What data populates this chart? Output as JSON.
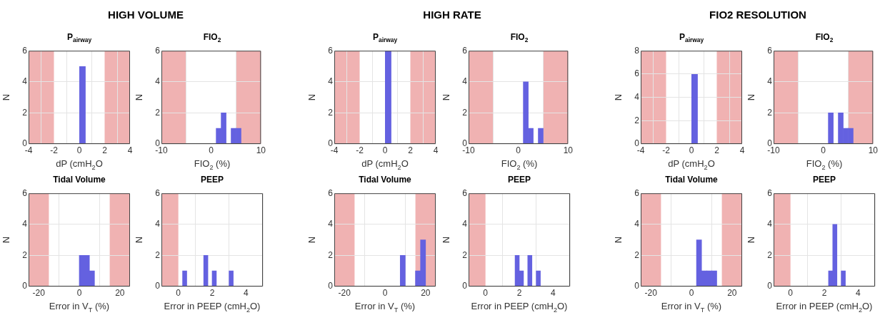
{
  "chart_data": [
    {
      "type": "histogram",
      "title": "P$_{airway}$",
      "xlabel": "dP (cmH$_{2}$O",
      "ylabel": "N",
      "annotations": [
        "HIGH VOLUME"
      ],
      "bins": [
        0,
        0.5
      ],
      "values": [
        5
      ],
      "color": "#6461e0",
      "xlim": [
        -4,
        4
      ],
      "xticks": [
        -4,
        -2,
        0,
        2,
        4
      ],
      "ylim": [
        0,
        6
      ],
      "yticks": [
        0,
        2,
        4,
        6
      ],
      "grid": true,
      "bands": [
        {
          "axis": "x",
          "from": -4,
          "to": -2,
          "color": "#f0b2b2"
        },
        {
          "axis": "x",
          "from": 2,
          "to": 4,
          "color": "#f0b2b2"
        }
      ]
    },
    {
      "type": "histogram",
      "title": "FIO$_{2}$",
      "xlabel": "FIO$_{2}$ (%)",
      "ylabel": "N",
      "bins": [
        1,
        2,
        3,
        4,
        5,
        6
      ],
      "values": [
        1,
        2,
        0,
        1,
        1
      ],
      "color": "#6461e0",
      "xlim": [
        -10,
        10
      ],
      "xticks": [
        -10,
        0,
        10
      ],
      "ylim": [
        0,
        6
      ],
      "yticks": [
        0,
        2,
        4,
        6
      ],
      "grid": true,
      "bands": [
        {
          "axis": "x",
          "from": -10,
          "to": -5,
          "color": "#f0b2b2"
        },
        {
          "axis": "x",
          "from": 5,
          "to": 10,
          "color": "#f0b2b2"
        }
      ]
    },
    {
      "type": "histogram",
      "title": "P$_{airway}$",
      "xlabel": "dP (cmH$_{2}$O",
      "ylabel": "N",
      "annotations": [
        "HIGH RATE"
      ],
      "bins": [
        0,
        0.5
      ],
      "values": [
        6
      ],
      "color": "#6461e0",
      "xlim": [
        -4,
        4
      ],
      "xticks": [
        -4,
        -2,
        0,
        2,
        4
      ],
      "ylim": [
        0,
        6
      ],
      "yticks": [
        0,
        2,
        4,
        6
      ],
      "grid": true,
      "bands": [
        {
          "axis": "x",
          "from": -4,
          "to": -2,
          "color": "#f0b2b2"
        },
        {
          "axis": "x",
          "from": 2,
          "to": 4,
          "color": "#f0b2b2"
        }
      ]
    },
    {
      "type": "histogram",
      "title": "FIO$_{2}$",
      "xlabel": "FIO$_{2}$ (%)",
      "ylabel": "N",
      "bins": [
        1,
        2,
        3,
        4,
        5
      ],
      "values": [
        4,
        1,
        0,
        1
      ],
      "color": "#6461e0",
      "xlim": [
        -10,
        10
      ],
      "xticks": [
        -10,
        0,
        10
      ],
      "ylim": [
        0,
        6
      ],
      "yticks": [
        0,
        2,
        4,
        6
      ],
      "grid": true,
      "bands": [
        {
          "axis": "x",
          "from": -10,
          "to": -5,
          "color": "#f0b2b2"
        },
        {
          "axis": "x",
          "from": 5,
          "to": 10,
          "color": "#f0b2b2"
        }
      ]
    },
    {
      "type": "histogram",
      "title": "P$_{airway}$",
      "xlabel": "dP (cmH$_{2}$O",
      "ylabel": "N",
      "annotations": [
        "FIO2 RESOLUTION"
      ],
      "bins": [
        0,
        0.5
      ],
      "values": [
        6
      ],
      "color": "#6461e0",
      "xlim": [
        -4,
        4
      ],
      "xticks": [
        -4,
        -2,
        0,
        2,
        4
      ],
      "ylim": [
        0,
        8
      ],
      "yticks": [
        0,
        2,
        4,
        6,
        8
      ],
      "grid": true,
      "bands": [
        {
          "axis": "x",
          "from": -4,
          "to": -2,
          "color": "#f0b2b2"
        },
        {
          "axis": "x",
          "from": 2,
          "to": 4,
          "color": "#f0b2b2"
        }
      ]
    },
    {
      "type": "histogram",
      "title": "FIO$_{2}$",
      "xlabel": "FIO$_{2}$ (%)",
      "ylabel": "N",
      "bins": [
        1,
        2,
        3,
        4,
        5,
        6
      ],
      "values": [
        2,
        0,
        2,
        1,
        1
      ],
      "color": "#6461e0",
      "xlim": [
        -10,
        10
      ],
      "xticks": [
        -10,
        0,
        10
      ],
      "ylim": [
        0,
        6
      ],
      "yticks": [
        0,
        2,
        4,
        6
      ],
      "grid": true,
      "bands": [
        {
          "axis": "x",
          "from": -10,
          "to": -5,
          "color": "#f0b2b2"
        },
        {
          "axis": "x",
          "from": 5,
          "to": 10,
          "color": "#f0b2b2"
        }
      ]
    },
    {
      "type": "histogram",
      "title": "Tidal Volume",
      "xlabel": "Error in V$_{T}$ (%)",
      "ylabel": "N",
      "bins": [
        0,
        2.5,
        5,
        7.5
      ],
      "values": [
        2,
        2,
        1
      ],
      "color": "#6461e0",
      "xlim": [
        -25,
        25
      ],
      "xticks": [
        -20,
        0,
        20
      ],
      "ylim": [
        0,
        6
      ],
      "yticks": [
        0,
        2,
        4,
        6
      ],
      "grid": true,
      "bands": [
        {
          "axis": "x",
          "from": -25,
          "to": -15,
          "color": "#f0b2b2"
        },
        {
          "axis": "x",
          "from": 15,
          "to": 25,
          "color": "#f0b2b2"
        }
      ]
    },
    {
      "type": "histogram",
      "title": "PEEP",
      "xlabel": "Error in PEEP (cmH$_{2}$O)",
      "ylabel": "N",
      "bins": [
        0.25,
        0.5,
        0.75,
        1,
        1.25,
        1.5,
        1.75,
        2,
        2.25,
        2.5,
        2.75,
        3,
        3.25
      ],
      "values": [
        1,
        0,
        0,
        0,
        0,
        2,
        0,
        1,
        0,
        0,
        0,
        1
      ],
      "color": "#6461e0",
      "xlim": [
        -1,
        5
      ],
      "xticks": [
        0,
        2,
        4
      ],
      "ylim": [
        0,
        6
      ],
      "yticks": [
        0,
        2,
        4,
        6
      ],
      "grid": true,
      "bands": [
        {
          "axis": "x",
          "from": -1,
          "to": 0,
          "color": "#f0b2b2"
        }
      ]
    },
    {
      "type": "histogram",
      "title": "Tidal Volume",
      "xlabel": "Error in V$_{T}$ (%)",
      "ylabel": "N",
      "bins": [
        7.5,
        10,
        12.5,
        15,
        17.5,
        20
      ],
      "values": [
        2,
        0,
        0,
        1,
        3
      ],
      "color": "#6461e0",
      "xlim": [
        -25,
        25
      ],
      "xticks": [
        -20,
        0,
        20
      ],
      "ylim": [
        0,
        6
      ],
      "yticks": [
        0,
        2,
        4,
        6
      ],
      "grid": true,
      "bands": [
        {
          "axis": "x",
          "from": -25,
          "to": -15,
          "color": "#f0b2b2"
        },
        {
          "axis": "x",
          "from": 15,
          "to": 25,
          "color": "#f0b2b2"
        }
      ]
    },
    {
      "type": "histogram",
      "title": "PEEP",
      "xlabel": "Error in PEEP (cmH$_{2}$O)",
      "ylabel": "N",
      "bins": [
        1.75,
        2,
        2.25,
        2.5,
        2.75,
        3,
        3.25
      ],
      "values": [
        2,
        1,
        0,
        2,
        0,
        1
      ],
      "color": "#6461e0",
      "xlim": [
        -1,
        5
      ],
      "xticks": [
        0,
        2,
        4
      ],
      "ylim": [
        0,
        6
      ],
      "yticks": [
        0,
        2,
        4,
        6
      ],
      "grid": true,
      "bands": [
        {
          "axis": "x",
          "from": -1,
          "to": 0,
          "color": "#f0b2b2"
        }
      ]
    },
    {
      "type": "histogram",
      "title": "Tidal Volume",
      "xlabel": "Error in V$_{T}$ (%)",
      "ylabel": "N",
      "bins": [
        2.5,
        5,
        7.5,
        10,
        12.5
      ],
      "values": [
        3,
        1,
        1,
        1
      ],
      "color": "#6461e0",
      "xlim": [
        -25,
        25
      ],
      "xticks": [
        -20,
        0,
        20
      ],
      "ylim": [
        0,
        6
      ],
      "yticks": [
        0,
        2,
        4,
        6
      ],
      "grid": true,
      "bands": [
        {
          "axis": "x",
          "from": -25,
          "to": -15,
          "color": "#f0b2b2"
        },
        {
          "axis": "x",
          "from": 15,
          "to": 25,
          "color": "#f0b2b2"
        }
      ]
    },
    {
      "type": "histogram",
      "title": "PEEP",
      "xlabel": "Error in PEEP (cmH$_{2}$O)",
      "ylabel": "N",
      "bins": [
        2.25,
        2.5,
        2.75,
        3,
        3.25
      ],
      "values": [
        1,
        4,
        0,
        1
      ],
      "color": "#6461e0",
      "xlim": [
        -1,
        5
      ],
      "xticks": [
        0,
        2,
        4
      ],
      "ylim": [
        0,
        6
      ],
      "yticks": [
        0,
        2,
        4,
        6
      ],
      "grid": true,
      "bands": [
        {
          "axis": "x",
          "from": -1,
          "to": 0,
          "color": "#f0b2b2"
        }
      ]
    }
  ]
}
